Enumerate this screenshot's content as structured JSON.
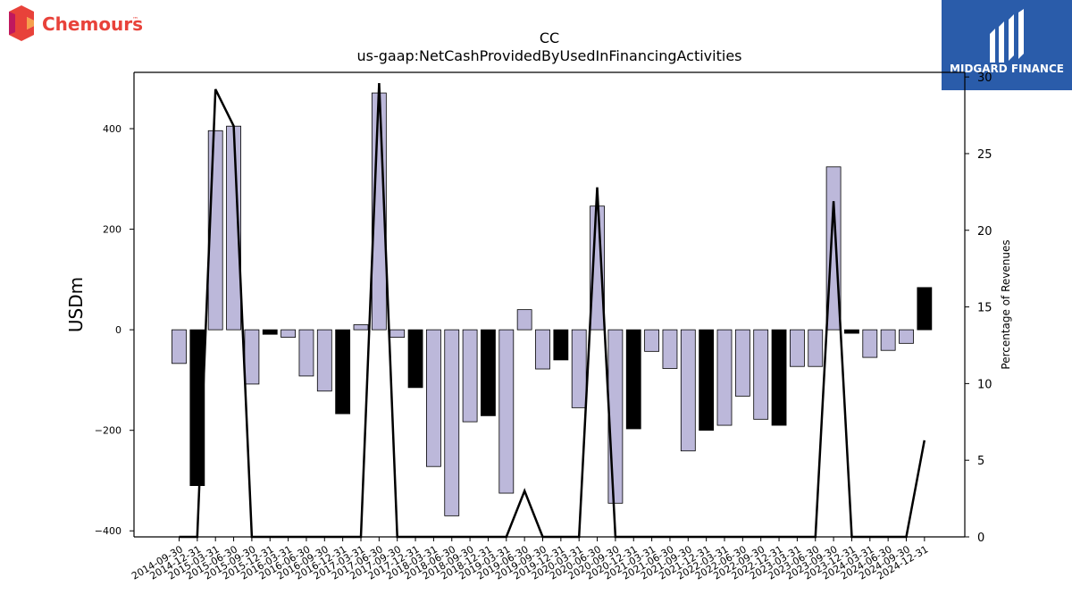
{
  "branding": {
    "left_logo_text": "Chemours",
    "left_logo_tm": "™",
    "right_logo_text": "MIDGARD FINANCE",
    "right_logo_bg": "#2a5caa"
  },
  "chart_data": {
    "type": "bar",
    "title": "CC",
    "subtitle": "us-gaap:NetCashProvidedByUsedInFinancingActivities",
    "ylabel": "USDm",
    "ylabel_right": "Percentage of Revenues",
    "ylim": [
      -412,
      512
    ],
    "ylim_right": [
      0,
      30.3
    ],
    "yticks": [
      "400",
      "200",
      "0",
      "−200",
      "−400"
    ],
    "ytick_values": [
      400,
      200,
      0,
      -200,
      -400
    ],
    "yticks_right": [
      "30",
      "25",
      "20",
      "15",
      "10",
      "5",
      "0"
    ],
    "ytick_values_right": [
      30,
      25,
      20,
      15,
      10,
      5,
      0
    ],
    "grid": false,
    "colors": {
      "quarter_bar": "#bcb8da",
      "annual_bar": "#000000",
      "line": "#000000",
      "edge": "#000000"
    },
    "categories": [
      "2014-09-30",
      "2014-12-31",
      "2015-03-31",
      "2015-06-30",
      "2015-09-30",
      "2015-12-31",
      "2016-03-31",
      "2016-06-30",
      "2016-09-30",
      "2016-12-31",
      "2017-03-31",
      "2017-06-30",
      "2017-09-30",
      "2017-12-31",
      "2018-03-31",
      "2018-06-30",
      "2018-09-30",
      "2018-12-31",
      "2019-03-31",
      "2019-06-30",
      "2019-09-30",
      "2019-12-31",
      "2020-03-31",
      "2020-06-30",
      "2020-09-30",
      "2020-12-31",
      "2021-03-31",
      "2021-06-30",
      "2021-09-30",
      "2021-12-31",
      "2022-03-31",
      "2022-06-30",
      "2022-09-30",
      "2022-12-31",
      "2023-03-31",
      "2023-06-30",
      "2023-09-30",
      "2023-12-31",
      "2024-03-31",
      "2024-06-30",
      "2024-09-30",
      "2024-12-31"
    ],
    "series": [
      {
        "kind": "bar",
        "values": [
          -67,
          -310,
          396,
          405,
          -108,
          -9,
          -15,
          -92,
          -122,
          -167,
          10,
          471,
          -15,
          -115,
          -272,
          -370,
          -183,
          -171,
          -325,
          40,
          -78,
          -60,
          -155,
          246,
          -345,
          -197,
          -43,
          -77,
          -241,
          -200,
          -190,
          -132,
          -178,
          -190,
          -73,
          -73,
          324,
          -7,
          -55,
          -41,
          -27,
          84
        ],
        "annual": [
          false,
          true,
          false,
          false,
          false,
          true,
          false,
          false,
          false,
          true,
          false,
          false,
          false,
          true,
          false,
          false,
          false,
          true,
          false,
          false,
          false,
          true,
          false,
          false,
          false,
          true,
          false,
          false,
          false,
          true,
          false,
          false,
          false,
          true,
          false,
          false,
          false,
          true,
          false,
          false,
          false,
          true
        ]
      },
      {
        "kind": "line",
        "axis": "right",
        "values": [
          null,
          null,
          29.2,
          26.8,
          null,
          null,
          null,
          null,
          null,
          null,
          null,
          29.6,
          null,
          null,
          null,
          null,
          null,
          null,
          null,
          3.0,
          null,
          null,
          null,
          22.8,
          null,
          null,
          null,
          null,
          null,
          null,
          null,
          null,
          null,
          null,
          null,
          null,
          21.9,
          null,
          null,
          null,
          null,
          6.3
        ]
      }
    ]
  }
}
